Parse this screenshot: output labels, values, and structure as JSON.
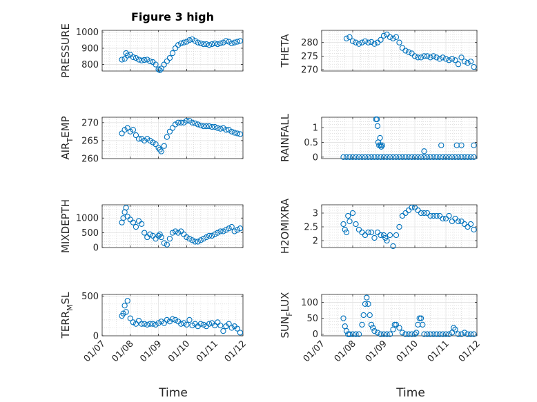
{
  "title": "Figure 3 high",
  "xlabel": "Time",
  "x_ticks": [
    "01/07",
    "01/08",
    "01/09",
    "01/10",
    "01/11",
    "01/12"
  ],
  "marker_color": "#0072BD",
  "grid_major_color": "#e3e3e3",
  "grid_minor_color": "#cfcfcf",
  "chart_data": [
    {
      "type": "scatter",
      "ylabel": "PRESSURE",
      "ylim": [
        760,
        1010
      ],
      "grid": true,
      "yticks": [
        800,
        900,
        1000
      ],
      "yticklabels": [
        "800",
        "900",
        "1000"
      ],
      "x": [
        7.7,
        7.8,
        7.85,
        7.9,
        8,
        8.1,
        8.2,
        8.3,
        8.4,
        8.5,
        8.6,
        8.7,
        8.8,
        8.9,
        9.0,
        9.05,
        9.1,
        9.2,
        9.3,
        9.4,
        9.5,
        9.6,
        9.7,
        9.8,
        9.9,
        10.0,
        10.1,
        10.2,
        10.3,
        10.4,
        10.5,
        10.6,
        10.7,
        10.8,
        10.9,
        11.0,
        11.1,
        11.2,
        11.3,
        11.4,
        11.5,
        11.6,
        11.7,
        11.8,
        11.9
      ],
      "y": [
        830,
        835,
        870,
        855,
        860,
        845,
        840,
        830,
        825,
        828,
        830,
        820,
        815,
        800,
        770,
        765,
        775,
        800,
        820,
        840,
        870,
        900,
        920,
        930,
        935,
        940,
        950,
        955,
        945,
        935,
        930,
        925,
        925,
        920,
        925,
        930,
        925,
        930,
        935,
        945,
        940,
        930,
        935,
        940,
        945
      ]
    },
    {
      "type": "scatter",
      "ylabel": "THETA",
      "ylim": [
        269.5,
        284.5
      ],
      "grid": true,
      "yticks": [
        270,
        275,
        280
      ],
      "yticklabels": [
        "270",
        "275",
        "280"
      ],
      "x": [
        7.8,
        7.9,
        8.0,
        8.1,
        8.2,
        8.3,
        8.4,
        8.5,
        8.6,
        8.7,
        8.8,
        8.9,
        9.0,
        9.1,
        9.2,
        9.3,
        9.4,
        9.5,
        9.6,
        9.7,
        9.8,
        9.9,
        10.0,
        10.1,
        10.2,
        10.3,
        10.4,
        10.5,
        10.6,
        10.7,
        10.8,
        10.9,
        11.0,
        11.1,
        11.2,
        11.3,
        11.4,
        11.5,
        11.6,
        11.7,
        11.8,
        11.9
      ],
      "y": [
        281.5,
        282,
        280.5,
        280,
        279.5,
        280,
        280.5,
        280,
        280.2,
        279.5,
        280,
        281,
        282.5,
        283,
        282,
        281.5,
        282,
        280,
        278,
        277,
        276.5,
        276,
        275,
        274.5,
        274.5,
        275,
        275,
        274.5,
        275,
        274.5,
        274,
        274.5,
        274,
        273.5,
        274,
        273.5,
        272,
        274.5,
        273,
        272.5,
        273,
        271
      ]
    },
    {
      "type": "scatter",
      "ylabel": "AIR_TEMP",
      "ylim": [
        260,
        271.5
      ],
      "grid": true,
      "yticks": [
        260,
        265,
        270
      ],
      "yticklabels": [
        "260",
        "265",
        "270"
      ],
      "x": [
        7.7,
        7.8,
        7.9,
        8.0,
        8.1,
        8.2,
        8.3,
        8.4,
        8.5,
        8.6,
        8.7,
        8.8,
        8.9,
        9.0,
        9.05,
        9.1,
        9.2,
        9.3,
        9.4,
        9.5,
        9.6,
        9.7,
        9.8,
        9.9,
        10.0,
        10.1,
        10.2,
        10.3,
        10.4,
        10.5,
        10.6,
        10.7,
        10.8,
        10.9,
        11.0,
        11.1,
        11.2,
        11.3,
        11.4,
        11.5,
        11.6,
        11.7,
        11.8,
        11.9
      ],
      "y": [
        267,
        268,
        268.5,
        267.5,
        268,
        266.5,
        265.5,
        265.5,
        265,
        265.5,
        265,
        264.5,
        264,
        263,
        262.5,
        262,
        263.5,
        266,
        267.5,
        268.5,
        269.5,
        270,
        270,
        270,
        270.5,
        270.5,
        270,
        269.8,
        269.5,
        269.2,
        269,
        269,
        269,
        268.8,
        268.8,
        268.5,
        268.3,
        268.5,
        268,
        268,
        267.5,
        267.2,
        267,
        266.8
      ]
    },
    {
      "type": "scatter",
      "ylabel": "RAINFALL",
      "ylim": [
        -0.05,
        1.35
      ],
      "grid": true,
      "yticks": [
        0,
        0.5,
        1
      ],
      "yticklabels": [
        "0",
        "0.5",
        "1"
      ],
      "x": [
        7.7,
        7.8,
        7.9,
        8.0,
        8.1,
        8.2,
        8.3,
        8.4,
        8.5,
        8.6,
        8.7,
        8.8,
        8.9,
        9.0,
        9.1,
        9.2,
        9.3,
        9.4,
        9.5,
        9.6,
        9.7,
        9.8,
        9.9,
        10.0,
        10.1,
        10.2,
        10.3,
        10.4,
        10.5,
        10.6,
        10.7,
        10.8,
        10.9,
        11.0,
        11.1,
        11.2,
        11.3,
        11.4,
        11.5,
        11.6,
        11.7,
        11.8,
        11.9,
        8.75,
        8.78,
        8.8,
        8.82,
        8.85,
        8.88,
        8.9,
        8.92,
        8.95,
        10.3,
        10.85,
        11.35,
        11.5,
        11.9
      ],
      "y": [
        0,
        0,
        0,
        0,
        0,
        0,
        0,
        0,
        0,
        0,
        0,
        0,
        0,
        0,
        0,
        0,
        0,
        0,
        0,
        0,
        0,
        0,
        0,
        0,
        0,
        0,
        0,
        0,
        0,
        0,
        0,
        0,
        0,
        0,
        0,
        0,
        0,
        0,
        0,
        0,
        0,
        0,
        0,
        1.28,
        1.28,
        1.05,
        0.5,
        0.4,
        0.65,
        0.4,
        0.35,
        0.4,
        0.2,
        0.4,
        0.4,
        0.4,
        0.4
      ]
    },
    {
      "type": "scatter",
      "ylabel": "MIXDEPTH",
      "ylim": [
        0,
        1450
      ],
      "grid": true,
      "yticks": [
        0,
        500,
        1000
      ],
      "yticklabels": [
        "0",
        "500",
        "1000"
      ],
      "x": [
        7.7,
        7.75,
        7.8,
        7.85,
        7.9,
        8.0,
        8.1,
        8.2,
        8.3,
        8.4,
        8.5,
        8.6,
        8.7,
        8.8,
        8.9,
        9.0,
        9.05,
        9.1,
        9.2,
        9.3,
        9.4,
        9.5,
        9.6,
        9.7,
        9.8,
        9.9,
        10.0,
        10.1,
        10.2,
        10.3,
        10.4,
        10.5,
        10.6,
        10.7,
        10.8,
        10.9,
        11.0,
        11.1,
        11.2,
        11.3,
        11.4,
        11.5,
        11.6,
        11.7,
        11.8,
        11.9
      ],
      "y": [
        850,
        1000,
        1200,
        1350,
        1050,
        950,
        850,
        700,
        900,
        800,
        500,
        350,
        450,
        400,
        300,
        400,
        450,
        350,
        150,
        100,
        300,
        500,
        550,
        500,
        550,
        450,
        350,
        300,
        250,
        200,
        200,
        250,
        300,
        350,
        400,
        400,
        450,
        500,
        550,
        550,
        600,
        650,
        700,
        550,
        600,
        650
      ]
    },
    {
      "type": "scatter",
      "ylabel": "H2OMIXRA",
      "ylim": [
        1.75,
        3.3
      ],
      "grid": true,
      "yticks": [
        2,
        2.5,
        3
      ],
      "yticklabels": [
        "2",
        "2.5",
        "3"
      ],
      "x": [
        7.7,
        7.75,
        7.8,
        7.85,
        7.9,
        8.0,
        8.1,
        8.2,
        8.3,
        8.4,
        8.5,
        8.6,
        8.7,
        8.8,
        8.9,
        9.0,
        9.05,
        9.1,
        9.2,
        9.3,
        9.4,
        9.5,
        9.6,
        9.7,
        9.8,
        9.9,
        10.0,
        10.1,
        10.2,
        10.3,
        10.4,
        10.5,
        10.6,
        10.7,
        10.8,
        10.9,
        11.0,
        11.1,
        11.2,
        11.3,
        11.4,
        11.5,
        11.6,
        11.7,
        11.8,
        11.9
      ],
      "y": [
        2.6,
        2.4,
        2.3,
        2.9,
        2.7,
        3.0,
        2.6,
        2.4,
        2.3,
        2.2,
        2.3,
        2.3,
        2.1,
        2.3,
        2.2,
        2.2,
        2.1,
        2.0,
        2.2,
        1.8,
        2.2,
        2.5,
        2.9,
        3.0,
        3.1,
        3.2,
        3.2,
        3.1,
        3.0,
        3.0,
        3.0,
        2.9,
        2.9,
        2.9,
        2.9,
        2.8,
        2.8,
        2.9,
        2.7,
        2.8,
        2.7,
        2.7,
        2.6,
        2.5,
        2.6,
        2.4
      ]
    },
    {
      "type": "scatter",
      "ylabel": "TERR_MSL",
      "ylim": [
        0,
        520
      ],
      "grid": true,
      "yticks": [
        0,
        500
      ],
      "yticklabels": [
        "0",
        "500"
      ],
      "x": [
        7.7,
        7.75,
        7.8,
        7.85,
        7.9,
        8.0,
        8.1,
        8.2,
        8.3,
        8.4,
        8.5,
        8.6,
        8.7,
        8.8,
        8.9,
        9.0,
        9.1,
        9.2,
        9.3,
        9.4,
        9.5,
        9.6,
        9.7,
        9.8,
        9.9,
        10.0,
        10.1,
        10.2,
        10.3,
        10.4,
        10.5,
        10.6,
        10.7,
        10.8,
        10.9,
        11.0,
        11.1,
        11.2,
        11.3,
        11.4,
        11.5,
        11.6,
        11.7,
        11.8,
        11.9
      ],
      "y": [
        250,
        280,
        380,
        300,
        440,
        220,
        170,
        150,
        190,
        150,
        150,
        140,
        150,
        150,
        140,
        160,
        180,
        160,
        200,
        180,
        210,
        200,
        180,
        150,
        160,
        140,
        200,
        130,
        150,
        120,
        150,
        140,
        120,
        150,
        160,
        130,
        170,
        130,
        60,
        120,
        150,
        100,
        120,
        90,
        40
      ]
    },
    {
      "type": "scatter",
      "ylabel": "SUN_FLUX",
      "ylim": [
        -5,
        125
      ],
      "grid": true,
      "yticks": [
        0,
        50,
        100
      ],
      "yticklabels": [
        "0",
        "50",
        "100"
      ],
      "x": [
        7.7,
        7.75,
        7.8,
        7.85,
        7.9,
        8.0,
        8.1,
        8.2,
        8.3,
        8.35,
        8.4,
        8.45,
        8.5,
        8.55,
        8.6,
        8.65,
        8.7,
        8.8,
        8.9,
        9.0,
        9.1,
        9.2,
        9.3,
        9.35,
        9.4,
        9.5,
        9.6,
        9.7,
        9.8,
        9.9,
        10.0,
        10.05,
        10.1,
        10.15,
        10.2,
        10.25,
        10.3,
        10.4,
        10.5,
        10.6,
        10.7,
        10.8,
        10.9,
        11.0,
        11.1,
        11.2,
        11.25,
        11.3,
        11.4,
        11.5,
        11.6,
        11.7,
        11.8,
        11.9
      ],
      "y": [
        50,
        25,
        10,
        0,
        0,
        0,
        0,
        0,
        30,
        60,
        95,
        115,
        95,
        60,
        30,
        20,
        10,
        5,
        0,
        0,
        0,
        0,
        15,
        30,
        30,
        20,
        5,
        0,
        0,
        0,
        0,
        5,
        30,
        50,
        50,
        30,
        0,
        0,
        0,
        0,
        0,
        0,
        0,
        0,
        0,
        5,
        20,
        15,
        0,
        0,
        5,
        0,
        0,
        0
      ]
    }
  ]
}
